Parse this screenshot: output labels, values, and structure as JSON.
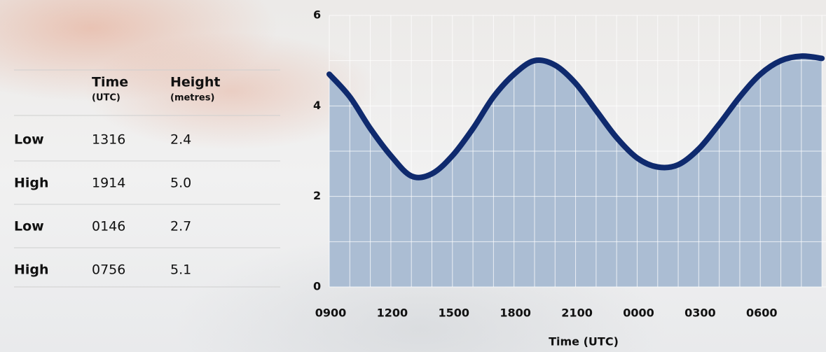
{
  "table": {
    "header": [
      [
        "Time",
        "(UTC)"
      ],
      [
        "Height",
        "(metres)"
      ]
    ],
    "rows": [
      [
        "Low",
        "1316",
        "2.4"
      ],
      [
        "High",
        "1914",
        "5.0"
      ],
      [
        "Low",
        "0146",
        "2.7"
      ],
      [
        "High",
        "0756",
        "5.1"
      ]
    ]
  },
  "chart_data": {
    "type": "area",
    "x_label": "Time (UTC)",
    "x": [
      0,
      1,
      2,
      3,
      4,
      5,
      6,
      7,
      8,
      9,
      10,
      11,
      12,
      13,
      14,
      15,
      16,
      17,
      18,
      19,
      20,
      21,
      22,
      23,
      24
    ],
    "series": [
      {
        "name": "Height",
        "color": "#0f2a6e",
        "fill": "#abbdd3",
        "values": [
          4.7,
          4.2,
          3.5,
          2.9,
          2.45,
          2.5,
          2.9,
          3.5,
          4.2,
          4.7,
          5.0,
          4.9,
          4.5,
          3.9,
          3.3,
          2.85,
          2.65,
          2.7,
          3.05,
          3.6,
          4.2,
          4.7,
          5.0,
          5.1,
          5.05
        ]
      }
    ],
    "xlim": [
      0,
      24.2
    ],
    "xticks": [
      {
        "value": 0,
        "label": "0900"
      },
      {
        "value": 3,
        "label": "1200"
      },
      {
        "value": 6,
        "label": "1500"
      },
      {
        "value": 9,
        "label": "1800"
      },
      {
        "value": 12,
        "label": "2100"
      },
      {
        "value": 15,
        "label": "0000"
      },
      {
        "value": 18,
        "label": "0300"
      },
      {
        "value": 21,
        "label": "0600"
      }
    ],
    "ylim": [
      0,
      6
    ],
    "yticks": [
      0,
      2,
      4,
      6
    ],
    "ygrid": [
      0,
      1,
      2,
      3,
      4,
      5,
      6
    ],
    "grid": true
  }
}
